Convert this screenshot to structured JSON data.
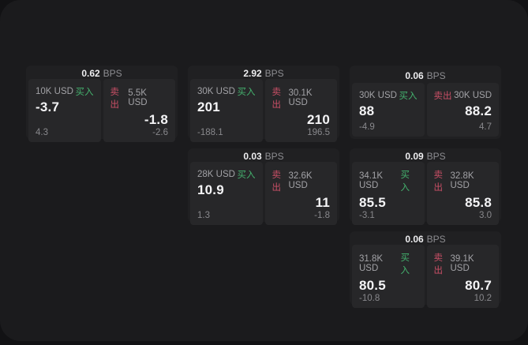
{
  "page": {
    "unit_label": "BPS",
    "buy_label": "买入",
    "sell_label": "卖出",
    "buy_color": "#44b26e",
    "sell_color": "#c94f66",
    "panel_bg": "#1b1b1d",
    "card_bg": "#202022",
    "cell_bg": "#272729"
  },
  "cards": [
    {
      "bps": "0.62",
      "col": 0,
      "row": 0,
      "buy": {
        "amount": "10K USD",
        "price": "-3.7",
        "delta": "4.3"
      },
      "sell": {
        "amount": "5.5K USD",
        "price": "-1.8",
        "delta": "-2.6"
      }
    },
    {
      "bps": "2.92",
      "col": 1,
      "row": 0,
      "buy": {
        "amount": "30K USD",
        "price": "201",
        "delta": "-188.1"
      },
      "sell": {
        "amount": "30.1K USD",
        "price": "210",
        "delta": "196.5"
      }
    },
    {
      "bps": "0.06",
      "col": 2,
      "row": 0,
      "buy": {
        "amount": "30K USD",
        "price": "88",
        "delta": "-4.9"
      },
      "sell": {
        "amount": "30K USD",
        "price": "88.2",
        "delta": "4.7"
      }
    },
    {
      "bps": "0.03",
      "col": 1,
      "row": 1,
      "buy": {
        "amount": "28K USD",
        "price": "10.9",
        "delta": "1.3"
      },
      "sell": {
        "amount": "32.6K USD",
        "price": "11",
        "delta": "-1.8"
      }
    },
    {
      "bps": "0.09",
      "col": 2,
      "row": 1,
      "buy": {
        "amount": "34.1K USD",
        "price": "85.5",
        "delta": "-3.1"
      },
      "sell": {
        "amount": "32.8K USD",
        "price": "85.8",
        "delta": "3.0"
      }
    },
    {
      "bps": "0.06",
      "col": 2,
      "row": 2,
      "buy": {
        "amount": "31.8K USD",
        "price": "80.5",
        "delta": "-10.8"
      },
      "sell": {
        "amount": "39.1K USD",
        "price": "80.7",
        "delta": "10.2"
      }
    }
  ]
}
